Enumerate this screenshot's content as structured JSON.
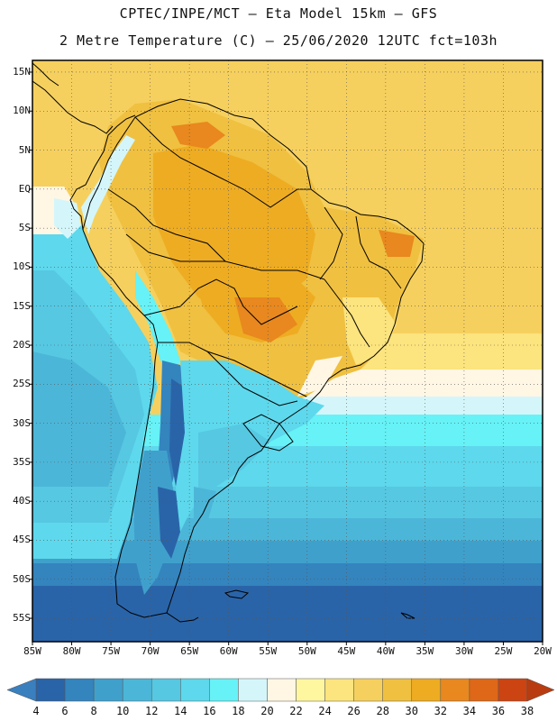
{
  "title_line1": "CPTEC/INPE/MCT –  Eta Model 15km – GFS",
  "title_line2": "2 Metre Temperature (C) – 25/06/2020 12UTC fct=103h",
  "variable": "2 Metre Temperature",
  "units": "C",
  "lat_labels": [
    "15N",
    "10N",
    "5N",
    "EQ",
    "5S",
    "10S",
    "15S",
    "20S",
    "25S",
    "30S",
    "35S",
    "40S",
    "45S",
    "50S",
    "55S"
  ],
  "lat_values": [
    15,
    10,
    5,
    0,
    -5,
    -10,
    -15,
    -20,
    -25,
    -30,
    -35,
    -40,
    -45,
    -50,
    -55
  ],
  "lon_labels": [
    "85W",
    "80W",
    "75W",
    "70W",
    "65W",
    "60W",
    "55W",
    "50W",
    "45W",
    "40W",
    "35W",
    "30W",
    "25W",
    "20W"
  ],
  "lon_values": [
    -85,
    -80,
    -75,
    -70,
    -65,
    -60,
    -55,
    -50,
    -45,
    -40,
    -35,
    -30,
    -25,
    -20
  ],
  "map_extent": {
    "lon_min": -85,
    "lon_max": -20,
    "lat_min": -58,
    "lat_max": 16.5
  },
  "colorbar": {
    "labels": [
      "4",
      "6",
      "8",
      "10",
      "12",
      "14",
      "16",
      "18",
      "20",
      "22",
      "24",
      "26",
      "28",
      "30",
      "32",
      "34",
      "36",
      "38"
    ],
    "colors": [
      "#2a64a8",
      "#3484be",
      "#40a0cc",
      "#4cb6d8",
      "#56c8e2",
      "#5ed8ec",
      "#66f2f6",
      "#d4f6fa",
      "#fff6e4",
      "#fff6a0",
      "#fce47e",
      "#f6d05e",
      "#f0c040",
      "#eeac22",
      "#e8881e",
      "#de6818",
      "#cc4412"
    ],
    "arrow_low": "#3a7fbe",
    "arrow_high": "#b83c10"
  }
}
